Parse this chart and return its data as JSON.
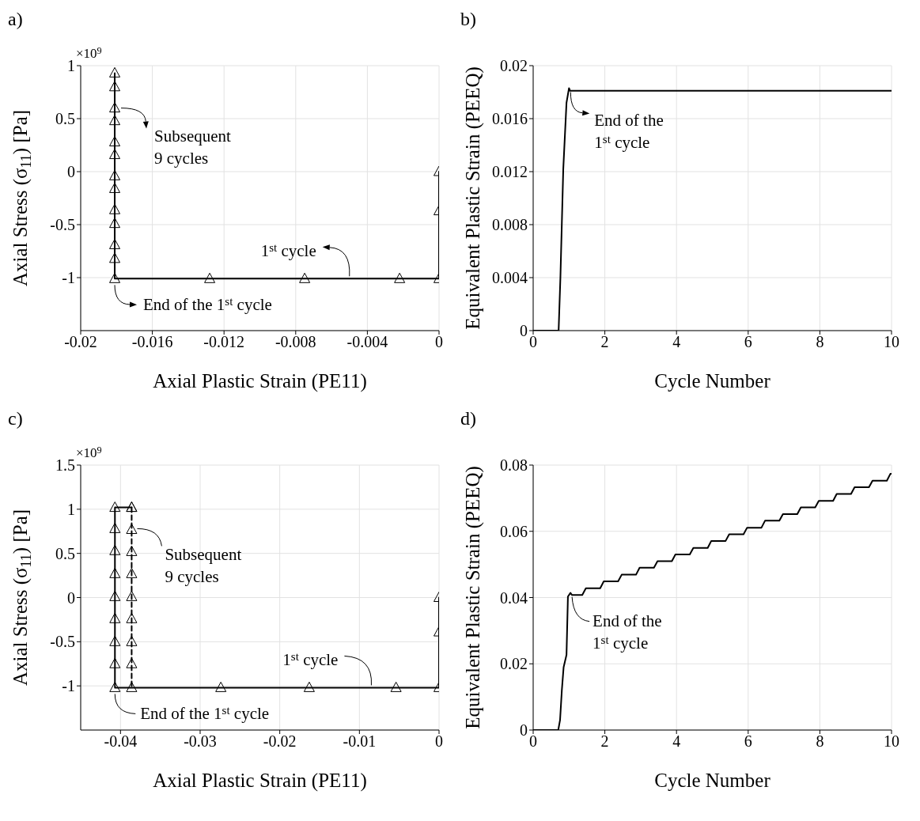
{
  "chart_data": [
    {
      "type": "line",
      "title": "a)",
      "xlabel": "Axial Plastic Strain (PE11)",
      "ylabel": "Axial Stress (σ$_{11}$) [Pa]",
      "xlim": [
        -0.02,
        0
      ],
      "ylim": [
        -1.5,
        1
      ],
      "xticks": [
        -0.02,
        -0.016,
        -0.012,
        -0.008,
        -0.004,
        0
      ],
      "yticks": [
        -1,
        -0.5,
        0,
        0.5,
        1
      ],
      "grid": true,
      "series": [
        {
          "type": "line",
          "color": "#000000",
          "line_style": "solid",
          "marker": "triangle",
          "x": [
            0,
            0,
            0,
            -0.0022,
            -0.0075,
            -0.0128,
            -0.0181,
            -0.0181,
            -0.0181,
            -0.0181,
            -0.0181,
            -0.0181,
            -0.0181,
            -0.0181,
            -0.0181,
            -0.0181,
            -0.0181,
            -0.0181,
            -0.0181
          ],
          "values": [
            0,
            -0.37,
            -1.01,
            -1.01,
            -1.01,
            -1.01,
            -1.01,
            -0.82,
            -0.69,
            -0.49,
            -0.36,
            -0.16,
            -0.04,
            0.16,
            0.28,
            0.48,
            0.6,
            0.8,
            0.93
          ]
        }
      ],
      "annotations": [
        {
          "text": "Subsequent\n9 cycles",
          "x": -0.0181,
          "y": 0.6
        },
        {
          "text": "1$^{st}$ cycle",
          "x": -0.005,
          "y": -1.01
        },
        {
          "text": "End of the 1$^{st}$ cycle",
          "x": -0.0181,
          "y": -1.01
        },
        "×10$^{9}$"
      ]
    },
    {
      "type": "line",
      "title": "b)",
      "xlabel": "Cycle Number",
      "ylabel": "Equivalent Plastic Strain (PEEQ)",
      "xlim": [
        0,
        10
      ],
      "ylim": [
        0,
        0.02
      ],
      "xticks": [
        0,
        2,
        4,
        6,
        8,
        10
      ],
      "yticks": [
        0,
        0.004,
        0.008,
        0.012,
        0.016,
        0.02
      ],
      "grid": true,
      "series": [
        {
          "type": "line",
          "color": "#000000",
          "line_style": "solid",
          "x": [
            0,
            0.71,
            0.76,
            0.84,
            0.93,
            1.0,
            1.03,
            10
          ],
          "values": [
            0,
            0,
            0.004,
            0.0122,
            0.0172,
            0.0183,
            0.0181,
            0.0181
          ]
        }
      ],
      "annotations": [
        {
          "text": "End of the\n1$^{st}$ cycle",
          "x": 1.0,
          "y": 0.0183
        }
      ]
    },
    {
      "type": "line",
      "title": "c)",
      "xlabel": "Axial Plastic Strain (PE11)",
      "ylabel": "Axial Stress (σ$_{11}$) [Pa]",
      "xlim": [
        -0.045,
        0
      ],
      "ylim": [
        -1.5,
        1.5
      ],
      "xticks": [
        -0.04,
        -0.03,
        -0.02,
        -0.01,
        0
      ],
      "yticks": [
        -1,
        -0.5,
        0,
        0.5,
        1,
        1.5
      ],
      "grid": true,
      "series": [
        {
          "type": "line",
          "color": "#000000",
          "line_style": "solid",
          "marker": "triangle",
          "x": [
            0,
            0,
            0,
            -0.0054,
            -0.0163,
            -0.0274,
            -0.0407,
            -0.0407,
            -0.0407,
            -0.0407,
            -0.0407,
            -0.0407,
            -0.0407,
            -0.0407,
            -0.0407,
            -0.0386
          ],
          "values": [
            0,
            -0.39,
            -1.02,
            -1.02,
            -1.02,
            -1.02,
            -1.02,
            -0.75,
            -0.5,
            -0.24,
            0.01,
            0.27,
            0.53,
            0.78,
            1.02,
            1.02
          ]
        },
        {
          "type": "line",
          "color": "#000000",
          "line_style": "dashed",
          "marker": "triangle",
          "x": [
            -0.0386,
            -0.0386,
            -0.0386,
            -0.0386,
            -0.0386,
            -0.0386,
            -0.0386,
            -0.0386,
            -0.0386
          ],
          "values": [
            1.02,
            0.77,
            0.52,
            0.27,
            0.01,
            -0.24,
            -0.5,
            -0.75,
            -1.02
          ]
        }
      ],
      "annotations": [
        {
          "text": "Subsequent\n9 cycles",
          "x": -0.0386,
          "y": 0.78
        },
        {
          "text": "1$^{st}$ cycle",
          "x": -0.0085,
          "y": -1.02
        },
        {
          "text": "End of the 1$^{st}$ cycle",
          "x": -0.0407,
          "y": -1.02
        },
        "×10$^{9}$"
      ]
    },
    {
      "type": "line",
      "title": "d)",
      "xlabel": "Cycle Number",
      "ylabel": "Equivalent Plastic Strain (PEEQ)",
      "xlim": [
        0,
        10
      ],
      "ylim": [
        0,
        0.08
      ],
      "xticks": [
        0,
        2,
        4,
        6,
        8,
        10
      ],
      "yticks": [
        0,
        0.02,
        0.04,
        0.06,
        0.08
      ],
      "grid": true,
      "series": [
        {
          "type": "line",
          "color": "#000000",
          "line_style": "solid",
          "x": [
            0,
            0.7,
            0.75,
            0.8,
            0.85,
            0.93,
            0.97,
            1.04,
            1.08,
            1.37,
            1.47,
            1.87,
            1.97,
            2.37,
            2.47,
            2.87,
            2.97,
            3.37,
            3.47,
            3.87,
            3.97,
            4.37,
            4.47,
            4.87,
            4.97,
            5.37,
            5.47,
            5.87,
            5.97,
            6.37,
            6.47,
            6.87,
            6.97,
            7.37,
            7.47,
            7.87,
            7.97,
            8.37,
            8.47,
            8.87,
            8.97,
            9.37,
            9.47,
            9.87,
            9.97,
            10
          ],
          "values": [
            0,
            0,
            0.003,
            0.012,
            0.019,
            0.0227,
            0.0403,
            0.0414,
            0.0408,
            0.0408,
            0.0428,
            0.0428,
            0.0449,
            0.0449,
            0.0469,
            0.0469,
            0.049,
            0.049,
            0.051,
            0.051,
            0.053,
            0.053,
            0.055,
            0.055,
            0.0571,
            0.0571,
            0.0591,
            0.0591,
            0.0611,
            0.0611,
            0.0632,
            0.0632,
            0.0652,
            0.0652,
            0.0672,
            0.0672,
            0.0692,
            0.0692,
            0.0713,
            0.0713,
            0.0733,
            0.0733,
            0.0753,
            0.0753,
            0.0774,
            0.0774
          ]
        }
      ],
      "annotations": [
        {
          "text": "End of the\n1$^{st}$ cycle",
          "x": 1.04,
          "y": 0.0414
        }
      ]
    }
  ]
}
